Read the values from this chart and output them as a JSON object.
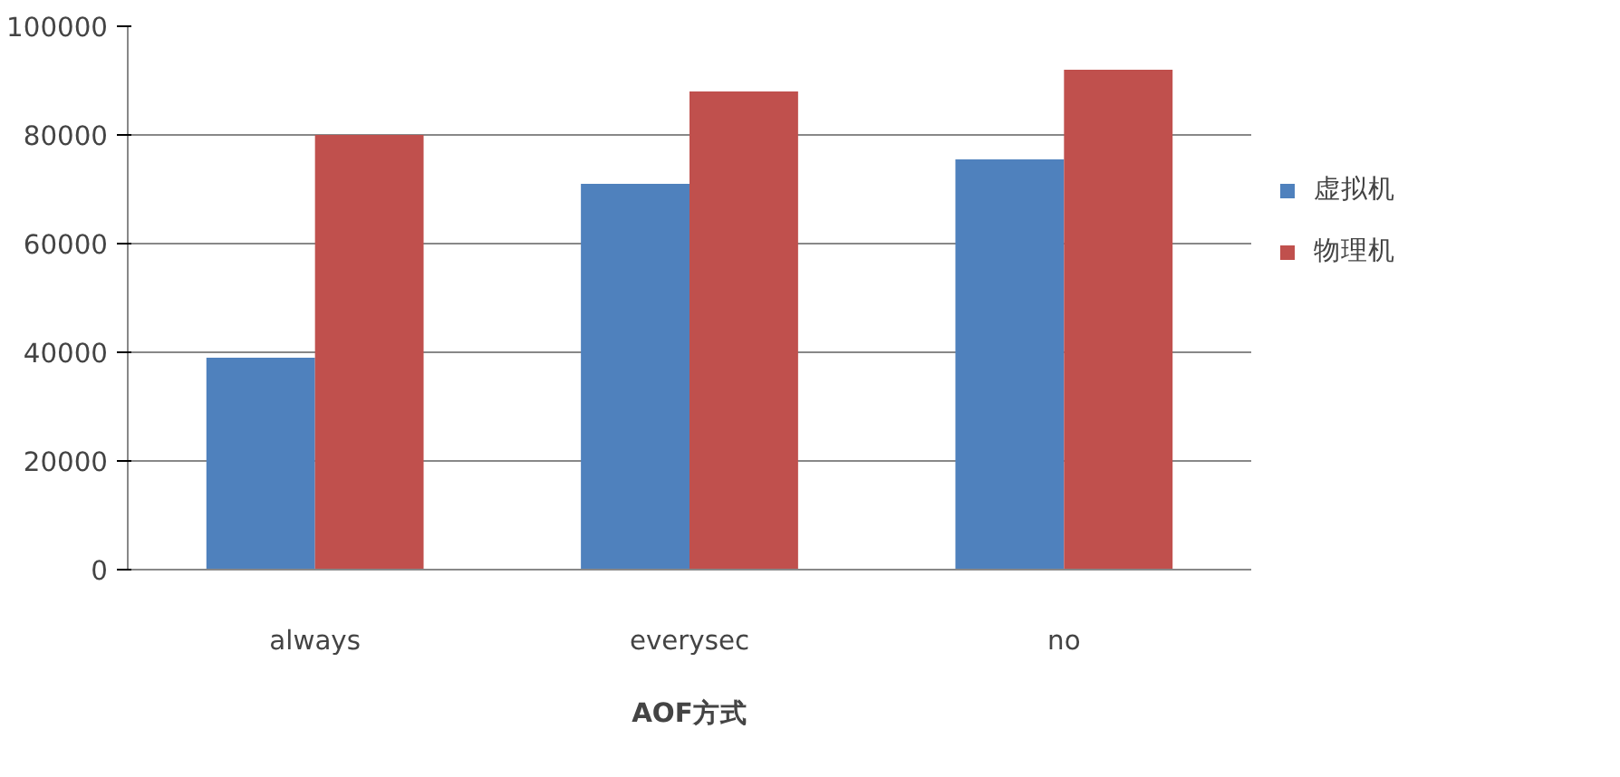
{
  "chart_data": {
    "type": "bar",
    "xlabel": "AOF方式",
    "categories": [
      "always",
      "everysec",
      "no"
    ],
    "series": [
      {
        "name": "虚拟机",
        "color": "#4f81bd",
        "values": [
          39000,
          71000,
          75500
        ]
      },
      {
        "name": "物理机",
        "color": "#c0504d",
        "values": [
          80000,
          88000,
          92000
        ]
      }
    ],
    "ylim": [
      0,
      100000
    ],
    "yticks": [
      0,
      20000,
      40000,
      60000,
      80000,
      100000
    ],
    "grid": "y",
    "legend": "right"
  }
}
